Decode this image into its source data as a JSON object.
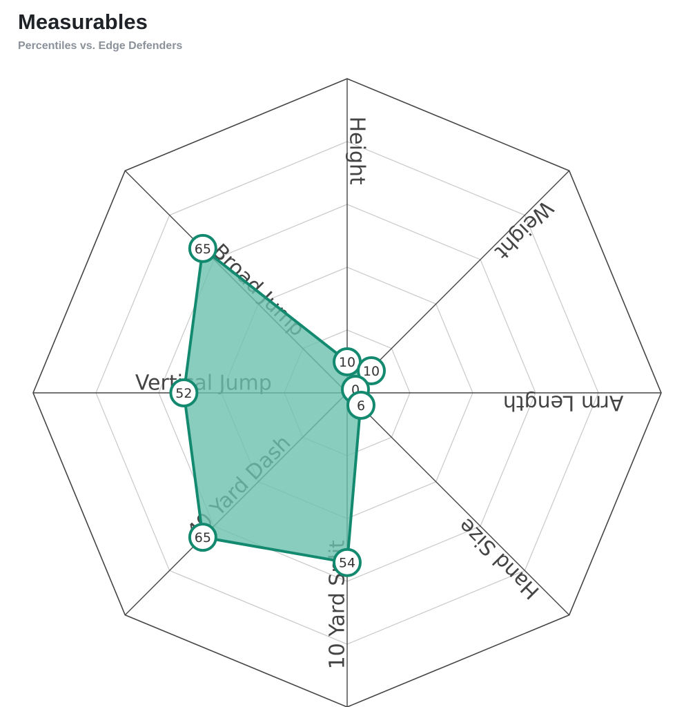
{
  "header": {
    "title": "Measurables",
    "subtitle": "Percentiles vs. Edge Defenders"
  },
  "colors": {
    "accent": "#13896f",
    "fill": "#6ac0ad",
    "grid": "#cccccc",
    "frame": "#444444"
  },
  "chart_data": {
    "type": "radar",
    "title": "Measurables",
    "subtitle": "Percentiles vs. Edge Defenders",
    "categories": [
      "Height",
      "Weight",
      "Arm Length",
      "Hand Size",
      "10 Yard Split",
      "40 Yard Dash",
      "Vertical Jump",
      "Broad Jump"
    ],
    "values": [
      10,
      10,
      0,
      6,
      54,
      65,
      52,
      65
    ],
    "value_labels": [
      "10",
      "10",
      "0",
      "6",
      "54",
      "65",
      "52",
      "65"
    ],
    "rlim": [
      0,
      100
    ],
    "grid_rings": [
      20,
      40,
      60,
      80,
      100
    ],
    "grid": true,
    "legend": "none"
  }
}
